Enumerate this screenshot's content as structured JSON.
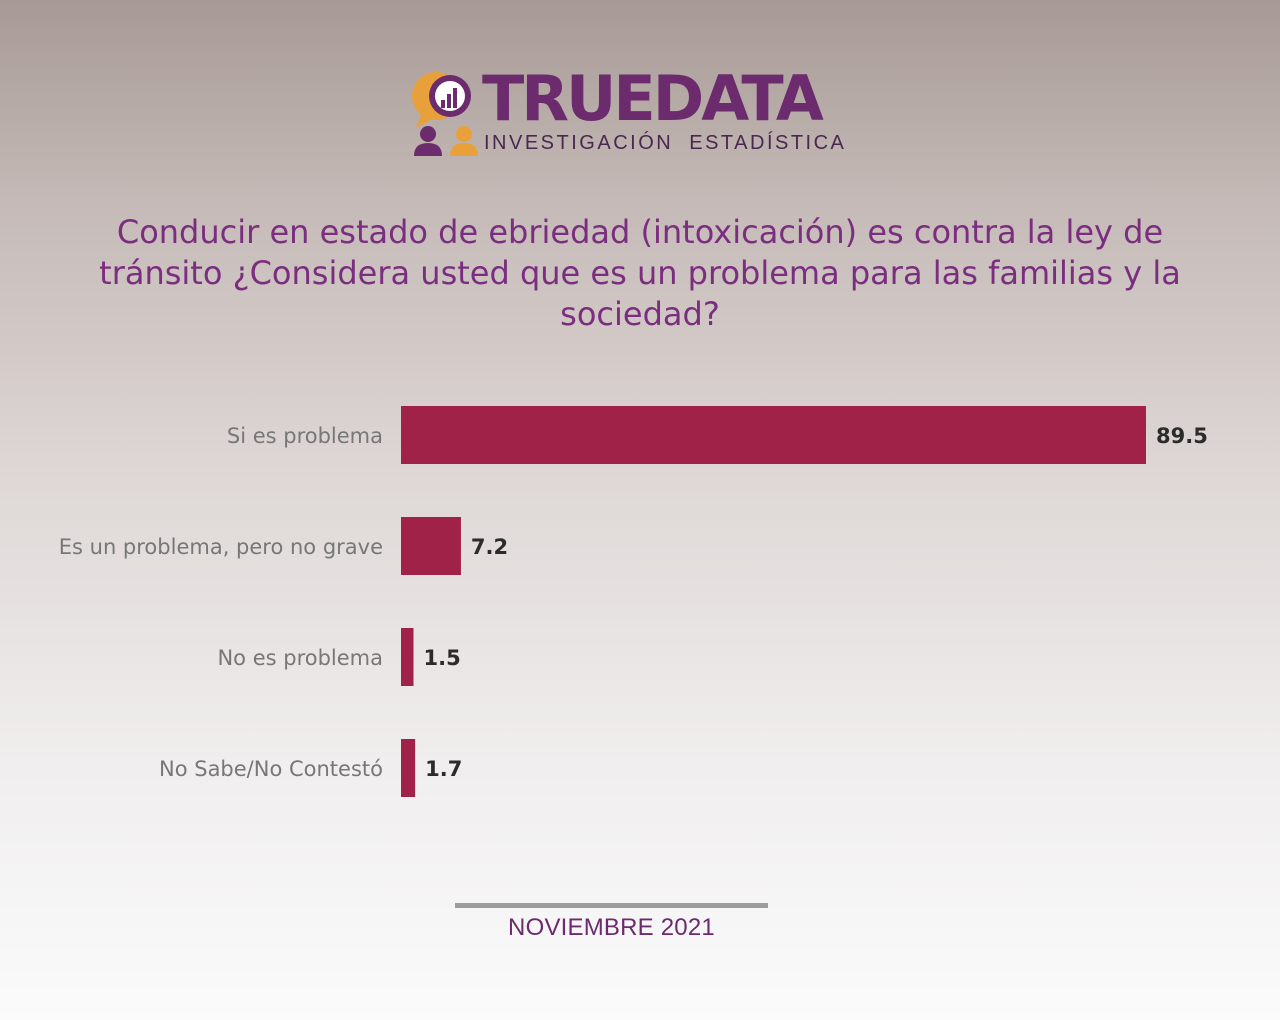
{
  "brand": {
    "name_part1": "TRUE",
    "name_part2": "DATA",
    "tagline": "INVESTIGACIÓN ESTADÍSTICA",
    "primary_color": "#6c2b6d",
    "accent_color": "#e8a13a",
    "logo_icon": "chart-speech-bubble-people-icon"
  },
  "question": "Conducir en estado de ebriedad (intoxicación) es contra la ley de tránsito ¿Considera usted que es un problema para las familias y la sociedad?",
  "footer": {
    "date": "NOVIEMBRE 2021"
  },
  "chart_data": {
    "type": "bar",
    "orientation": "horizontal",
    "title": "",
    "xlabel": "",
    "ylabel": "",
    "categories": [
      "Si es problema",
      "Es un problema, pero no grave",
      "No es problema",
      "No Sabe/No Contestó"
    ],
    "values": [
      89.5,
      7.2,
      1.5,
      1.7
    ],
    "value_labels": [
      "89.5",
      "7.2",
      "1.5",
      "1.7"
    ],
    "xlim": [
      0,
      89.5
    ],
    "grid": false,
    "legend": "none",
    "bar_color": "#a02249",
    "value_label_color": "#2b2b2b",
    "category_label_color": "#777777"
  }
}
